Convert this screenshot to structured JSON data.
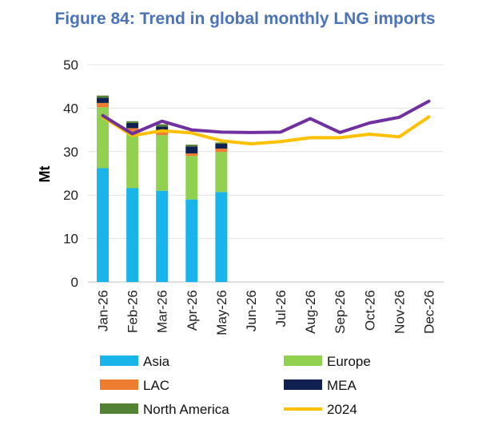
{
  "chart_data": {
    "type": "bar",
    "title": "Figure 84: Trend in global monthly LNG imports",
    "ylabel": "Mt",
    "xlabel": "",
    "ylim": [
      0,
      50
    ],
    "yticks": [
      0,
      10,
      20,
      30,
      40,
      50
    ],
    "grid": true,
    "legend_position": "bottom",
    "categories": [
      "Jan-26",
      "Feb-26",
      "Mar-26",
      "Apr-26",
      "May-26",
      "Jun-26",
      "Jul-26",
      "Aug-26",
      "Sep-26",
      "Oct-26",
      "Nov-26",
      "Dec-26"
    ],
    "stacked_series": [
      {
        "name": "Asia",
        "color": "#18b4ea",
        "values": [
          26.2,
          21.6,
          21.0,
          19.0,
          20.7,
          null,
          null,
          null,
          null,
          null,
          null,
          null
        ]
      },
      {
        "name": "Europe",
        "color": "#92d050",
        "values": [
          14.0,
          13.0,
          12.8,
          10.0,
          9.2,
          null,
          null,
          null,
          null,
          null,
          null,
          null
        ]
      },
      {
        "name": "LAC",
        "color": "#ed7d31",
        "values": [
          1.0,
          0.8,
          0.7,
          0.6,
          0.8,
          null,
          null,
          null,
          null,
          null,
          null,
          null
        ]
      },
      {
        "name": "MEA",
        "color": "#102050",
        "values": [
          1.2,
          1.2,
          1.3,
          1.6,
          1.1,
          null,
          null,
          null,
          null,
          null,
          null,
          null
        ]
      },
      {
        "name": "North America",
        "color": "#548235",
        "values": [
          0.5,
          0.4,
          0.5,
          0.4,
          0.3,
          null,
          null,
          null,
          null,
          null,
          null,
          null
        ]
      }
    ],
    "line_series": [
      {
        "name": "2024",
        "color": "#ffc000",
        "values": [
          38.0,
          33.7,
          34.8,
          34.3,
          32.5,
          31.8,
          32.3,
          33.2,
          33.2,
          34.0,
          33.4,
          38.0
        ]
      },
      {
        "name": "",
        "color": "#7030a0",
        "values": [
          38.3,
          34.1,
          37.0,
          35.0,
          34.5,
          34.4,
          34.5,
          37.6,
          34.4,
          36.6,
          37.9,
          41.6
        ]
      }
    ],
    "legend": [
      {
        "label": "Asia",
        "kind": "box",
        "color": "#18b4ea"
      },
      {
        "label": "Europe",
        "kind": "box",
        "color": "#92d050"
      },
      {
        "label": "LAC",
        "kind": "box",
        "color": "#ed7d31"
      },
      {
        "label": "MEA",
        "kind": "box",
        "color": "#102050"
      },
      {
        "label": "North America",
        "kind": "box",
        "color": "#548235"
      },
      {
        "label": "2024",
        "kind": "line",
        "color": "#ffc000"
      }
    ]
  }
}
